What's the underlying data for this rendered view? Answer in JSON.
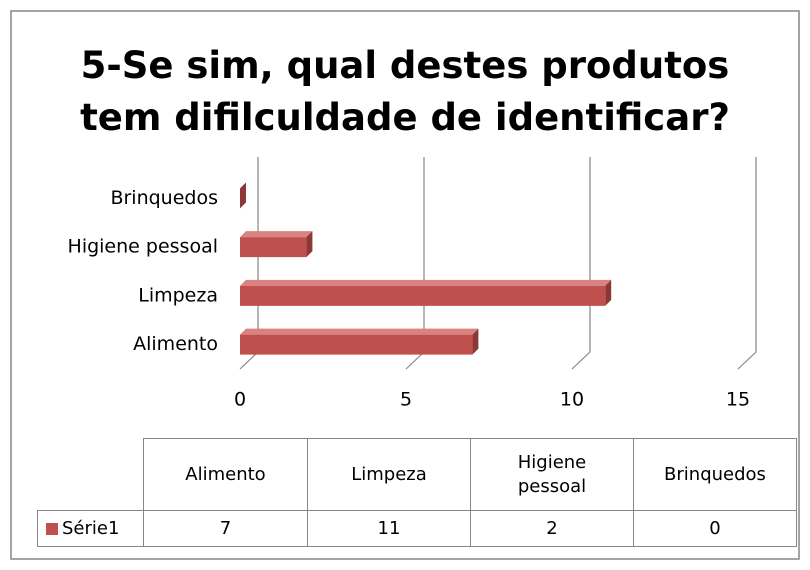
{
  "chart_data": {
    "type": "bar3d_horizontal",
    "title": "5-Se sim, qual destes produtos tem difilculdade de identificar?",
    "categories": [
      "Alimento",
      "Limpeza",
      "Higiene pessoal",
      "Brinquedos"
    ],
    "series": [
      {
        "name": "Série1",
        "color": "#c0504d",
        "values": [
          7,
          11,
          2,
          0
        ]
      }
    ],
    "xlim": [
      0,
      15
    ],
    "xticks": [
      0,
      5,
      10,
      15
    ],
    "grid": true,
    "data_table": true
  }
}
